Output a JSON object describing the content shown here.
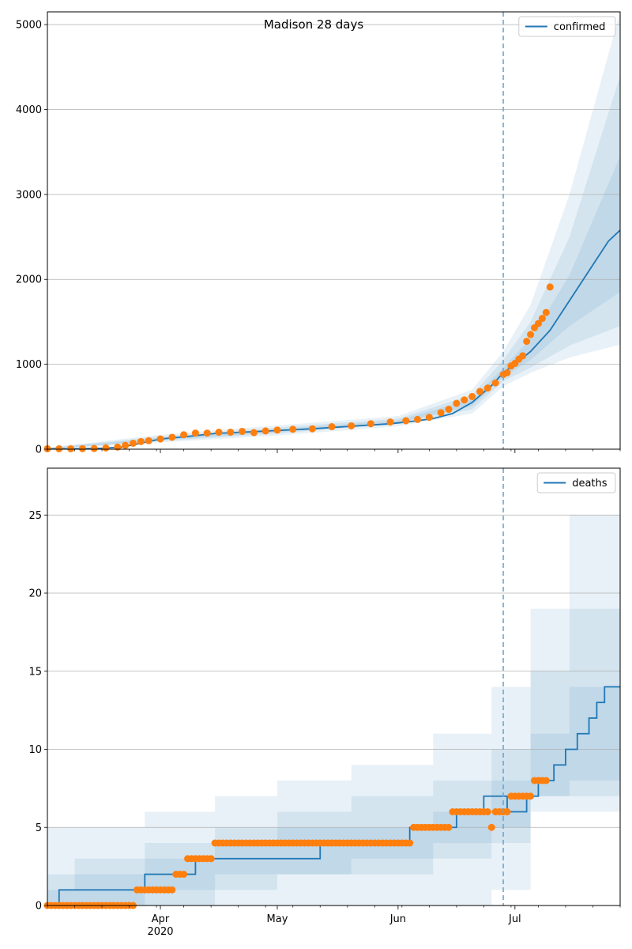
{
  "chart_data": [
    {
      "type": "line",
      "title": "Madison 28 days",
      "xlabel": "",
      "ylabel": "",
      "x_range": [
        "2020-03-03",
        "2020-07-28"
      ],
      "ylim": [
        0,
        5150
      ],
      "yticks": [
        0,
        1000,
        2000,
        3000,
        4000,
        5000
      ],
      "grid": "horizontal",
      "legend": {
        "position": "top-right",
        "entries": [
          "confirmed"
        ]
      },
      "forecast_start": "2020-06-28",
      "series": [
        {
          "name": "confirmed",
          "role": "model",
          "x": [
            "2020-03-03",
            "2020-03-10",
            "2020-03-17",
            "2020-03-22",
            "2020-03-27",
            "2020-04-01",
            "2020-04-08",
            "2020-04-15",
            "2020-04-22",
            "2020-05-01",
            "2020-05-10",
            "2020-05-20",
            "2020-05-30",
            "2020-06-05",
            "2020-06-10",
            "2020-06-15",
            "2020-06-20",
            "2020-06-25",
            "2020-06-28",
            "2020-07-01",
            "2020-07-05",
            "2020-07-10",
            "2020-07-15",
            "2020-07-20",
            "2020-07-25",
            "2020-07-28"
          ],
          "values": [
            2,
            5,
            10,
            25,
            70,
            120,
            150,
            185,
            200,
            220,
            240,
            270,
            300,
            330,
            360,
            420,
            550,
            750,
            900,
            1000,
            1150,
            1400,
            1750,
            2100,
            2450,
            2580
          ]
        },
        {
          "name": "confirmed",
          "role": "observed",
          "x": [
            "2020-03-03",
            "2020-03-06",
            "2020-03-09",
            "2020-03-12",
            "2020-03-15",
            "2020-03-18",
            "2020-03-21",
            "2020-03-23",
            "2020-03-25",
            "2020-03-27",
            "2020-03-29",
            "2020-04-01",
            "2020-04-04",
            "2020-04-07",
            "2020-04-10",
            "2020-04-13",
            "2020-04-16",
            "2020-04-19",
            "2020-04-22",
            "2020-04-25",
            "2020-04-28",
            "2020-05-01",
            "2020-05-05",
            "2020-05-10",
            "2020-05-15",
            "2020-05-20",
            "2020-05-25",
            "2020-05-30",
            "2020-06-03",
            "2020-06-06",
            "2020-06-09",
            "2020-06-12",
            "2020-06-14",
            "2020-06-16",
            "2020-06-18",
            "2020-06-20",
            "2020-06-22",
            "2020-06-24",
            "2020-06-26",
            "2020-06-28",
            "2020-06-29",
            "2020-06-30",
            "2020-07-01",
            "2020-07-02",
            "2020-07-03",
            "2020-07-04",
            "2020-07-05",
            "2020-07-06",
            "2020-07-07",
            "2020-07-08"
          ],
          "values": [
            5,
            5,
            5,
            6,
            8,
            15,
            25,
            45,
            70,
            90,
            100,
            120,
            140,
            170,
            190,
            190,
            200,
            200,
            210,
            195,
            215,
            225,
            235,
            240,
            265,
            275,
            300,
            320,
            335,
            350,
            375,
            430,
            470,
            540,
            580,
            620,
            680,
            720,
            780,
            880,
            900,
            980,
            1010,
            1060,
            1100,
            1270,
            1350,
            1430,
            1480,
            1540
          ]
        }
      ],
      "extra_observed": [
        {
          "x": "2020-07-09",
          "value": 1610
        },
        {
          "x": "2020-07-10",
          "value": 1910
        }
      ],
      "bands": [
        {
          "x": [
            "2020-03-03",
            "2020-04-01",
            "2020-05-01",
            "2020-06-01",
            "2020-06-20",
            "2020-06-28",
            "2020-07-05",
            "2020-07-15",
            "2020-07-28"
          ],
          "low": [
            0,
            80,
            160,
            270,
            420,
            740,
            900,
            1080,
            1230
          ],
          "high": [
            20,
            170,
            280,
            390,
            700,
            1150,
            1700,
            3000,
            5200
          ]
        },
        {
          "x": [
            "2020-03-03",
            "2020-04-01",
            "2020-05-01",
            "2020-06-01",
            "2020-06-20",
            "2020-06-28",
            "2020-07-05",
            "2020-07-15",
            "2020-07-28"
          ],
          "low": [
            0,
            95,
            185,
            295,
            470,
            800,
            960,
            1220,
            1450
          ],
          "high": [
            15,
            150,
            255,
            360,
            640,
            1050,
            1500,
            2500,
            4400
          ]
        },
        {
          "x": [
            "2020-03-03",
            "2020-04-01",
            "2020-05-01",
            "2020-06-01",
            "2020-06-20",
            "2020-06-28",
            "2020-07-05",
            "2020-07-15",
            "2020-07-28"
          ],
          "low": [
            0,
            105,
            200,
            310,
            510,
            850,
            1050,
            1450,
            1850
          ],
          "high": [
            10,
            135,
            235,
            340,
            590,
            960,
            1300,
            2050,
            3450
          ]
        }
      ]
    },
    {
      "type": "line",
      "title": "",
      "xlabel": "",
      "ylabel": "",
      "x_range": [
        "2020-03-03",
        "2020-07-28"
      ],
      "ylim": [
        0,
        28
      ],
      "yticks": [
        0,
        5,
        10,
        15,
        20,
        25
      ],
      "grid": "horizontal",
      "legend": {
        "position": "top-right",
        "entries": [
          "deaths"
        ]
      },
      "forecast_start": "2020-06-28",
      "xticks": [
        {
          "date": "2020-04-01",
          "label": "Apr"
        },
        {
          "date": "2020-05-01",
          "label": "May"
        },
        {
          "date": "2020-06-01",
          "label": "Jun"
        },
        {
          "date": "2020-07-01",
          "label": "Jul"
        }
      ],
      "year_label": "2020",
      "series": [
        {
          "name": "deaths",
          "role": "model",
          "step_x": [
            "2020-03-03",
            "2020-03-06",
            "2020-03-28",
            "2020-04-10",
            "2020-04-15",
            "2020-05-12",
            "2020-06-04",
            "2020-06-16",
            "2020-06-23",
            "2020-06-29",
            "2020-07-04",
            "2020-07-07",
            "2020-07-11",
            "2020-07-14",
            "2020-07-17",
            "2020-07-20",
            "2020-07-22",
            "2020-07-24",
            "2020-07-26",
            "2020-07-28"
          ],
          "values": [
            0,
            1,
            2,
            3,
            3,
            4,
            5,
            6,
            7,
            6,
            7,
            8,
            9,
            10,
            11,
            12,
            13,
            14,
            14,
            14
          ]
        },
        {
          "name": "deaths",
          "role": "observed",
          "x_segments": [
            {
              "from": "2020-03-03",
              "to": "2020-03-25",
              "value": 0
            },
            {
              "from": "2020-03-26",
              "to": "2020-04-04",
              "value": 1
            },
            {
              "from": "2020-04-05",
              "to": "2020-04-07",
              "value": 2
            },
            {
              "from": "2020-04-08",
              "to": "2020-04-14",
              "value": 3
            },
            {
              "from": "2020-04-15",
              "to": "2020-06-04",
              "value": 4
            },
            {
              "from": "2020-06-05",
              "to": "2020-06-14",
              "value": 5
            },
            {
              "from": "2020-06-15",
              "to": "2020-06-24",
              "value": 6
            },
            {
              "from": "2020-06-25",
              "to": "2020-06-25",
              "value": 5
            },
            {
              "from": "2020-06-26",
              "to": "2020-06-29",
              "value": 6
            },
            {
              "from": "2020-06-30",
              "to": "2020-07-05",
              "value": 7
            },
            {
              "from": "2020-07-06",
              "to": "2020-07-09",
              "value": 8
            }
          ]
        }
      ],
      "bands": [
        {
          "step_x": [
            "2020-03-03",
            "2020-03-10",
            "2020-03-28",
            "2020-04-15",
            "2020-05-01",
            "2020-05-20",
            "2020-06-10",
            "2020-06-25",
            "2020-07-05",
            "2020-07-15",
            "2020-07-28"
          ],
          "low": [
            0,
            0,
            0,
            0,
            0,
            0,
            0,
            1,
            6,
            6,
            7
          ],
          "high": [
            5,
            5,
            6,
            7,
            8,
            9,
            11,
            14,
            19,
            25,
            28
          ]
        },
        {
          "step_x": [
            "2020-03-03",
            "2020-03-10",
            "2020-03-28",
            "2020-04-15",
            "2020-05-01",
            "2020-05-20",
            "2020-06-10",
            "2020-06-25",
            "2020-07-05",
            "2020-07-15",
            "2020-07-28"
          ],
          "low": [
            0,
            0,
            0,
            1,
            2,
            2,
            3,
            4,
            7,
            7,
            8
          ],
          "high": [
            2,
            3,
            4,
            5,
            6,
            7,
            8,
            10,
            15,
            19,
            25
          ]
        },
        {
          "step_x": [
            "2020-03-03",
            "2020-03-10",
            "2020-03-28",
            "2020-04-15",
            "2020-05-01",
            "2020-05-20",
            "2020-06-10",
            "2020-06-25",
            "2020-07-05",
            "2020-07-15",
            "2020-07-28"
          ],
          "low": [
            0,
            0,
            1,
            2,
            2,
            3,
            4,
            5,
            7,
            8,
            9
          ],
          "high": [
            1,
            2,
            3,
            4,
            5,
            5,
            6,
            8,
            11,
            14,
            19
          ]
        }
      ]
    }
  ],
  "colors": {
    "model": "#1f77b4",
    "observed": "#ff7f0e",
    "band": "#1f77b4",
    "grid": "#b0b0b0",
    "forecast_line": "#6aa9d6"
  }
}
